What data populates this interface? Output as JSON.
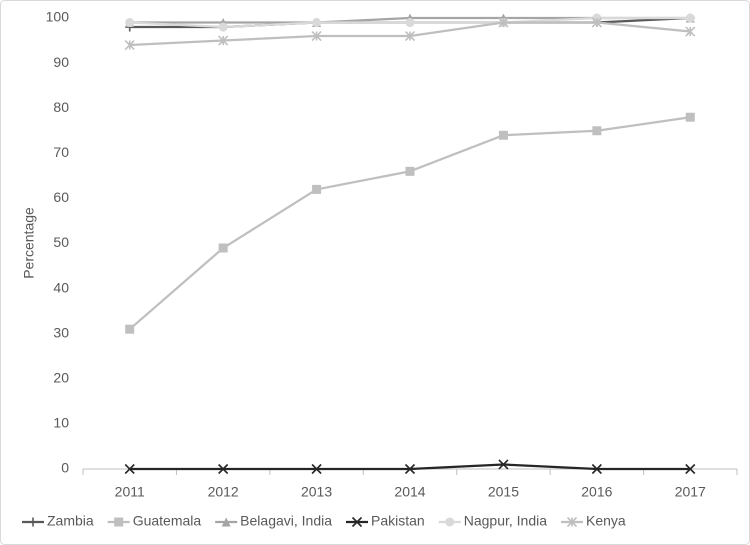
{
  "chart_data": {
    "type": "line",
    "y_label": "Percentage",
    "categories": [
      "2011",
      "2012",
      "2013",
      "2014",
      "2015",
      "2016",
      "2017"
    ],
    "ylim": [
      0,
      100
    ],
    "yticks": [
      0,
      10,
      20,
      30,
      40,
      50,
      60,
      70,
      80,
      90,
      100
    ],
    "grid": false,
    "legend": "bottom",
    "series": [
      {
        "name": "Zambia",
        "color": "#595959",
        "marker": "plus",
        "values": [
          98,
          98,
          99,
          99,
          99,
          99,
          100
        ]
      },
      {
        "name": "Guatemala",
        "color": "#bfbfbf",
        "marker": "square",
        "values": [
          31,
          49,
          62,
          66,
          74,
          75,
          78
        ]
      },
      {
        "name": "Belagavi, India",
        "color": "#a5a5a5",
        "marker": "triangle",
        "values": [
          99,
          99,
          99,
          100,
          100,
          100,
          100
        ]
      },
      {
        "name": "Pakistan",
        "color": "#262626",
        "marker": "x",
        "values": [
          0,
          0,
          0,
          0,
          1,
          0,
          0
        ]
      },
      {
        "name": "Nagpur, India",
        "color": "#d9d9d9",
        "marker": "circle",
        "values": [
          99,
          98,
          99,
          99,
          99,
          100,
          100
        ]
      },
      {
        "name": "Kenya",
        "color": "#bfbfbf",
        "marker": "star",
        "values": [
          94,
          95,
          96,
          96,
          99,
          99,
          97
        ]
      }
    ]
  }
}
